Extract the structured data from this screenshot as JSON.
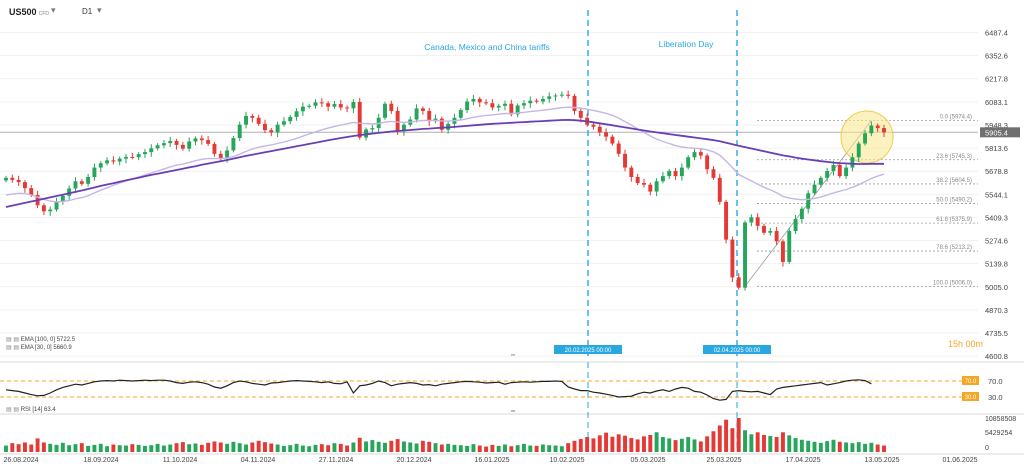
{
  "header": {
    "symbol": "US500",
    "symbol_suffix": "CFD",
    "timeframe": "D1"
  },
  "events": [
    {
      "label": "Canada, Mexico and China tariffs",
      "date_label": "20.02.2025 00:00"
    },
    {
      "label": "Liberation Day",
      "date_label": "02.04.2025 00:00"
    }
  ],
  "countdown": "15h 00m",
  "indicators": {
    "ema100": "EMA [100, 0]  5722.5",
    "ema30": "EMA [30, 0]  5660.9",
    "rsi": "RSI [14]  63.4",
    "rsi_levels": [
      "70.0",
      "30.0"
    ],
    "rsi_axis": [
      "70.0",
      "30.0"
    ],
    "volume_axis": [
      "10858508",
      "5429254",
      "0"
    ]
  },
  "colors": {
    "up": "#26a65b",
    "down": "#e53935",
    "ema100": "#6a3fb5",
    "ema30": "#c6b6e3",
    "event_line": "#29a7e1",
    "price_tag": "#707070",
    "rsi_level": "#f5a623",
    "rsi_line": "#222222",
    "highlight": "#f7e88a"
  },
  "chart_data": {
    "type": "candlestick",
    "instrument": "US500",
    "y_ticks": [
      6487.4,
      6352.6,
      6217.8,
      6083.1,
      5948.3,
      5813.6,
      5678.8,
      5544.1,
      5409.3,
      5274.6,
      5139.8,
      5005.0,
      4870.3,
      4735.5,
      4600.8
    ],
    "y_tick_labels": [
      "6487.4",
      "6352.6",
      "6217.8",
      "6083.1",
      "5948.3",
      "5813.6",
      "5678.8",
      "5544.1",
      "5409.3",
      "5274.6",
      "5139.8",
      "5005.0",
      "4870.3",
      "4735.5",
      "4600.8"
    ],
    "ylim": [
      4590,
      6560
    ],
    "x_ticks": [
      "26.08.2024",
      "18.09.2024",
      "11.10.2024",
      "04.11.2024",
      "27.11.2024",
      "20.12.2024",
      "16.01.2025",
      "10.02.2025",
      "05.03.2025",
      "25.03.2025",
      "17.04.2025",
      "13.05.2025",
      "01.06.2025"
    ],
    "current_price": 5905.4,
    "current_price_label": "5905.4",
    "fibonacci": [
      {
        "label": "0.0 (5974.4)",
        "value": 5974.4
      },
      {
        "label": "23.6 (5745.3)",
        "value": 5745.3
      },
      {
        "label": "38.2 (5604.5)",
        "value": 5604.5
      },
      {
        "label": "50.0 (5490.2)",
        "value": 5490.2
      },
      {
        "label": "61.8 (5375.9)",
        "value": 5375.9
      },
      {
        "label": "78.6 (5213.2)",
        "value": 5213.2
      },
      {
        "label": "100.0 (5006.0)",
        "value": 5006.0
      }
    ],
    "closes": [
      5640,
      5628,
      5615,
      5580,
      5540,
      5480,
      5445,
      5455,
      5500,
      5535,
      5578,
      5620,
      5605,
      5645,
      5700,
      5725,
      5742,
      5735,
      5752,
      5762,
      5760,
      5778,
      5790,
      5812,
      5830,
      5842,
      5855,
      5832,
      5810,
      5852,
      5870,
      5860,
      5838,
      5780,
      5755,
      5800,
      5872,
      5950,
      6001,
      5990,
      5955,
      5918,
      5905,
      5950,
      5970,
      5995,
      6028,
      6055,
      6060,
      6080,
      6075,
      6055,
      6070,
      6050,
      6045,
      6082,
      5875,
      5922,
      5930,
      5990,
      6072,
      6030,
      5912,
      5950,
      5980,
      6045,
      6030,
      5970,
      5985,
      5920,
      5955,
      5990,
      6035,
      6085,
      6100,
      6080,
      6075,
      6050,
      6060,
      6072,
      6010,
      6062,
      6075,
      6090,
      6085,
      6100,
      6115,
      6120,
      6125,
      6118,
      6030,
      5990,
      5950,
      5938,
      5905,
      5880,
      5840,
      5780,
      5700,
      5645,
      5610,
      5600,
      5560,
      5620,
      5650,
      5680,
      5650,
      5700,
      5760,
      5790,
      5770,
      5690,
      5640,
      5500,
      5280,
      5060,
      5000,
      5380,
      5410,
      5360,
      5320,
      5330,
      5270,
      5150,
      5330,
      5400,
      5460,
      5550,
      5600,
      5640,
      5680,
      5715,
      5650,
      5700,
      5760,
      5840,
      5900,
      5945,
      5930,
      5905
    ],
    "ema100": [
      5470,
      5478,
      5486,
      5494,
      5502,
      5510,
      5518,
      5526,
      5534,
      5542,
      5550,
      5558,
      5566,
      5575,
      5584,
      5593,
      5601,
      5609,
      5617,
      5625,
      5633,
      5641,
      5649,
      5657,
      5664,
      5671,
      5679,
      5686,
      5693,
      5701,
      5708,
      5716,
      5723,
      5730,
      5737,
      5744,
      5752,
      5760,
      5768,
      5775,
      5782,
      5789,
      5796,
      5803,
      5810,
      5817,
      5824,
      5831,
      5838,
      5845,
      5852,
      5859,
      5866,
      5872,
      5878,
      5884,
      5889,
      5894,
      5898,
      5902,
      5906,
      5910,
      5913,
      5916,
      5919,
      5922,
      5925,
      5927,
      5930,
      5932,
      5934,
      5937,
      5940,
      5943,
      5946,
      5949,
      5952,
      5955,
      5957,
      5959,
      5961,
      5963,
      5965,
      5967,
      5969,
      5971,
      5973,
      5975,
      5977,
      5978,
      5976,
      5973,
      5969,
      5964,
      5958,
      5952,
      5946,
      5940,
      5934,
      5928,
      5922,
      5916,
      5910,
      5905,
      5900,
      5895,
      5890,
      5885,
      5880,
      5875,
      5870,
      5865,
      5860,
      5853,
      5845,
      5836,
      5827,
      5819,
      5811,
      5803,
      5795,
      5787,
      5779,
      5771,
      5765,
      5758,
      5752,
      5747,
      5742,
      5737,
      5733,
      5729,
      5726,
      5724,
      5722,
      5721,
      5721,
      5722,
      5722,
      5722
    ],
    "ema30": [
      5540,
      5545,
      5550,
      5548,
      5540,
      5528,
      5515,
      5505,
      5500,
      5502,
      5508,
      5518,
      5525,
      5536,
      5552,
      5568,
      5582,
      5596,
      5610,
      5622,
      5633,
      5645,
      5656,
      5668,
      5680,
      5692,
      5704,
      5714,
      5720,
      5730,
      5740,
      5748,
      5752,
      5752,
      5752,
      5756,
      5764,
      5778,
      5794,
      5808,
      5818,
      5826,
      5832,
      5840,
      5849,
      5859,
      5870,
      5883,
      5896,
      5908,
      5920,
      5930,
      5940,
      5948,
      5955,
      5963,
      5958,
      5956,
      5954,
      5957,
      5965,
      5969,
      5965,
      5964,
      5965,
      5970,
      5974,
      5974,
      5975,
      5971,
      5971,
      5973,
      5977,
      5985,
      5993,
      5999,
      6004,
      6007,
      6011,
      6015,
      6015,
      6018,
      6022,
      6026,
      6030,
      6034,
      6039,
      6044,
      6049,
      6052,
      6050,
      6046,
      6040,
      6033,
      6025,
      6016,
      6004,
      5988,
      5968,
      5948,
      5926,
      5905,
      5884,
      5866,
      5852,
      5840,
      5828,
      5820,
      5815,
      5812,
      5810,
      5803,
      5792,
      5772,
      5738,
      5700,
      5660,
      5640,
      5622,
      5603,
      5585,
      5570,
      5553,
      5532,
      5522,
      5516,
      5512,
      5515,
      5520,
      5528,
      5540,
      5552,
      5562,
      5572,
      5585,
      5600,
      5618,
      5636,
      5650,
      5661
    ],
    "rsi": [
      48,
      46,
      44,
      40,
      36,
      33,
      34,
      40,
      48,
      54,
      58,
      62,
      60,
      64,
      68,
      70,
      71,
      70,
      72,
      71,
      70,
      71,
      72,
      71,
      72,
      72,
      70,
      66,
      64,
      67,
      68,
      66,
      62,
      55,
      52,
      58,
      66,
      70,
      68,
      64,
      62,
      60,
      65,
      66,
      68,
      70,
      71,
      70,
      69,
      68,
      66,
      68,
      64,
      63,
      68,
      40,
      58,
      60,
      64,
      70,
      66,
      58,
      62,
      64,
      66,
      64,
      60,
      61,
      58,
      62,
      64,
      66,
      68,
      69,
      68,
      67,
      65,
      66,
      67,
      62,
      66,
      67,
      68,
      67,
      68,
      69,
      69,
      70,
      69,
      55,
      50,
      46,
      46,
      42,
      40,
      37,
      34,
      30,
      31,
      32,
      38,
      42,
      40,
      45,
      48,
      44,
      50,
      54,
      52,
      44,
      42,
      35,
      26,
      22,
      24,
      44,
      46,
      44,
      43,
      44,
      40,
      36,
      50,
      54,
      56,
      58,
      60,
      62,
      64,
      66,
      60,
      63,
      66,
      70,
      72,
      73,
      71,
      63
    ],
    "volume": [
      0.19,
      0.26,
      0.23,
      0.28,
      0.22,
      0.4,
      0.28,
      0.24,
      0.21,
      0.27,
      0.2,
      0.23,
      0.26,
      0.18,
      0.21,
      0.24,
      0.17,
      0.22,
      0.2,
      0.19,
      0.23,
      0.21,
      0.18,
      0.2,
      0.24,
      0.19,
      0.22,
      0.26,
      0.29,
      0.23,
      0.25,
      0.21,
      0.27,
      0.31,
      0.28,
      0.24,
      0.3,
      0.26,
      0.22,
      0.28,
      0.33,
      0.29,
      0.25,
      0.22,
      0.18,
      0.2,
      0.24,
      0.19,
      0.17,
      0.21,
      0.23,
      0.2,
      0.26,
      0.24,
      0.19,
      0.28,
      0.42,
      0.31,
      0.35,
      0.3,
      0.27,
      0.33,
      0.38,
      0.31,
      0.28,
      0.25,
      0.33,
      0.3,
      0.26,
      0.22,
      0.24,
      0.21,
      0.2,
      0.18,
      0.23,
      0.19,
      0.16,
      0.21,
      0.18,
      0.22,
      0.17,
      0.2,
      0.24,
      0.19,
      0.18,
      0.22,
      0.2,
      0.19,
      0.17,
      0.26,
      0.33,
      0.38,
      0.44,
      0.4,
      0.49,
      0.57,
      0.45,
      0.52,
      0.48,
      0.41,
      0.37,
      0.46,
      0.5,
      0.58,
      0.44,
      0.4,
      0.35,
      0.39,
      0.44,
      0.37,
      0.31,
      0.46,
      0.61,
      0.78,
      0.95,
      0.7,
      1.0,
      0.64,
      0.52,
      0.58,
      0.5,
      0.47,
      0.44,
      0.58,
      0.49,
      0.41,
      0.36,
      0.33,
      0.3,
      0.27,
      0.32,
      0.36,
      0.3,
      0.28,
      0.26,
      0.29,
      0.24,
      0.27,
      0.22,
      0.19
    ]
  }
}
